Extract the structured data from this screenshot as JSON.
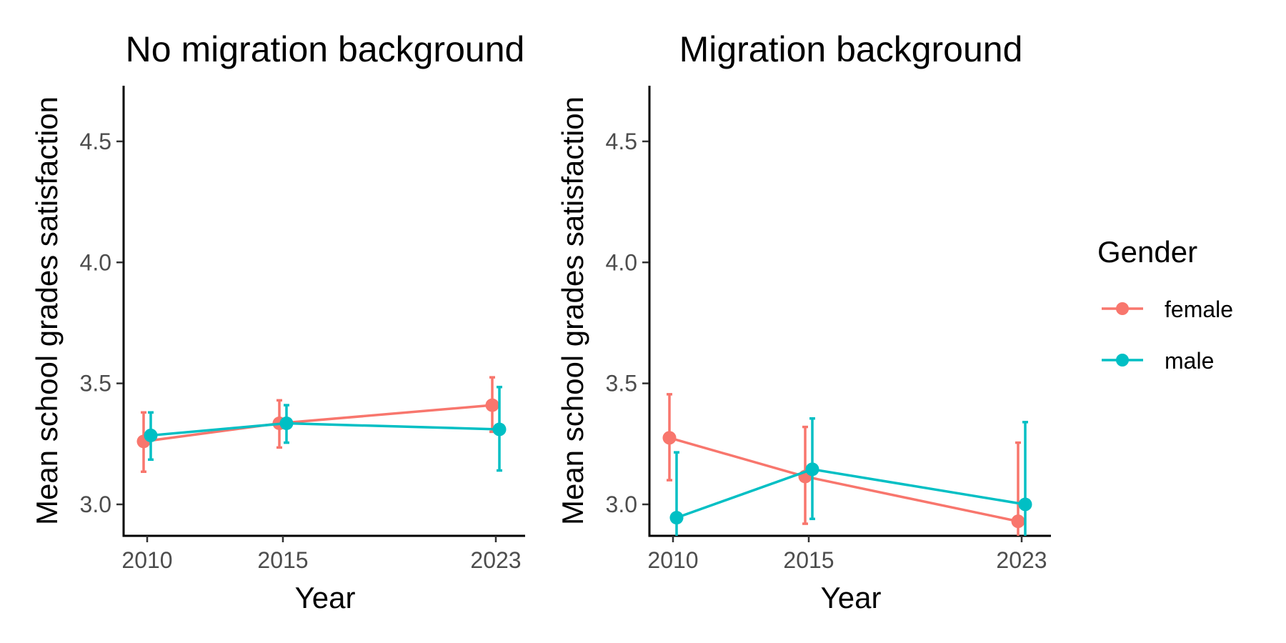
{
  "chart_data": [
    {
      "type": "line",
      "title": "No migration background",
      "xlabel": "Year",
      "ylabel": "Mean school grades satisfaction",
      "x": [
        2010,
        2015,
        2023
      ],
      "x_ticks": [
        "2010",
        "2015",
        "2023"
      ],
      "y_ticks": [
        "3.0",
        "3.5",
        "4.0",
        "4.5"
      ],
      "ylim": [
        2.87,
        4.73
      ],
      "error_bars": true,
      "grid": false,
      "series": [
        {
          "name": "female",
          "color": "#F8766D",
          "values": [
            3.26,
            3.335,
            3.41
          ],
          "lower": [
            3.135,
            3.235,
            3.3
          ],
          "upper": [
            3.38,
            3.43,
            3.525
          ]
        },
        {
          "name": "male",
          "color": "#00BFC4",
          "values": [
            3.285,
            3.335,
            3.31
          ],
          "lower": [
            3.185,
            3.255,
            3.14
          ],
          "upper": [
            3.38,
            3.41,
            3.485
          ]
        }
      ]
    },
    {
      "type": "line",
      "title": "Migration background",
      "xlabel": "Year",
      "ylabel": "Mean school grades satisfaction",
      "x": [
        2010,
        2015,
        2023
      ],
      "x_ticks": [
        "2010",
        "2015",
        "2023"
      ],
      "y_ticks": [
        "3.0",
        "3.5",
        "4.0",
        "4.5"
      ],
      "ylim": [
        2.87,
        4.73
      ],
      "error_bars": true,
      "grid": false,
      "series": [
        {
          "name": "female",
          "color": "#F8766D",
          "values": [
            3.275,
            3.115,
            2.93
          ],
          "lower": [
            3.1,
            2.92,
            2.6
          ],
          "upper": [
            3.455,
            3.32,
            3.255
          ]
        },
        {
          "name": "male",
          "color": "#00BFC4",
          "values": [
            2.945,
            3.145,
            3.0
          ],
          "lower": [
            2.6,
            2.94,
            2.66
          ],
          "upper": [
            3.215,
            3.355,
            3.34
          ]
        }
      ]
    }
  ],
  "legend": {
    "title": "Gender",
    "placement": "right",
    "items": [
      {
        "label": "female",
        "color": "#F8766D"
      },
      {
        "label": "male",
        "color": "#00BFC4"
      }
    ]
  }
}
